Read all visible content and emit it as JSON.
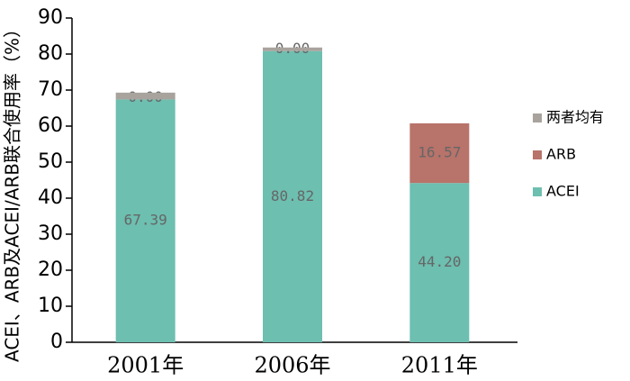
{
  "chart_data": {
    "type": "stacked_bar",
    "y_label": "ACEI、ARB及ACEI/ARB联合使用率（%）",
    "categories": [
      "2001年",
      "2006年",
      "2011年"
    ],
    "series": [
      {
        "name": "ACEI",
        "color": "#6dbfb0",
        "values": [
          67.39,
          80.82,
          44.2
        ],
        "value_labels": [
          "67.39",
          "80.82",
          "44.20"
        ]
      },
      {
        "name": "ARB",
        "color": "#b8736a",
        "values": [
          0,
          0,
          16.57
        ],
        "value_labels": [
          "0.00",
          "0.00",
          "16.57"
        ]
      },
      {
        "name": "两者均有",
        "color": "#a9a39d",
        "values": [
          1.9,
          1.0,
          0
        ]
      }
    ],
    "ylim": [
      0,
      90
    ],
    "yticks": [
      0,
      10,
      20,
      30,
      40,
      50,
      60,
      70,
      80,
      90
    ]
  }
}
